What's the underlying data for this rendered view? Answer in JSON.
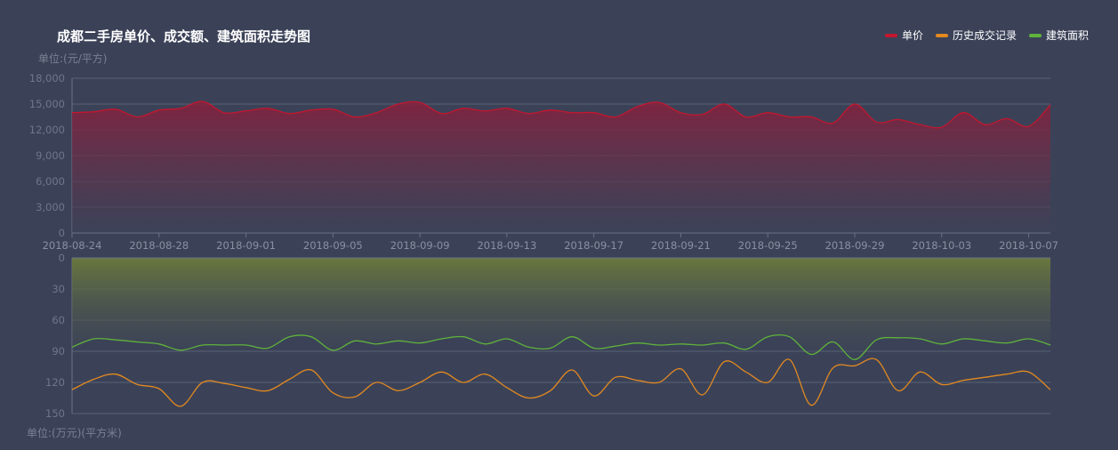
{
  "chart_data": {
    "type": "area",
    "title": "成都二手房单价、成交额、建筑面积走势图",
    "legend": {
      "placement": "top-right",
      "items": [
        {
          "name": "单价",
          "color": "#c4162e"
        },
        {
          "name": "历史成交记录",
          "color": "#e3891f"
        },
        {
          "name": "建筑面积",
          "color": "#5fb33a"
        }
      ]
    },
    "x": [
      "2018-08-24",
      "2018-08-25",
      "2018-08-26",
      "2018-08-27",
      "2018-08-28",
      "2018-08-29",
      "2018-08-30",
      "2018-08-31",
      "2018-09-01",
      "2018-09-02",
      "2018-09-03",
      "2018-09-04",
      "2018-09-05",
      "2018-09-06",
      "2018-09-07",
      "2018-09-08",
      "2018-09-09",
      "2018-09-10",
      "2018-09-11",
      "2018-09-12",
      "2018-09-13",
      "2018-09-14",
      "2018-09-15",
      "2018-09-16",
      "2018-09-17",
      "2018-09-18",
      "2018-09-19",
      "2018-09-20",
      "2018-09-21",
      "2018-09-22",
      "2018-09-23",
      "2018-09-24",
      "2018-09-25",
      "2018-09-26",
      "2018-09-27",
      "2018-09-28",
      "2018-09-29",
      "2018-09-30",
      "2018-10-01",
      "2018-10-02",
      "2018-10-03",
      "2018-10-04",
      "2018-10-05",
      "2018-10-06",
      "2018-10-07",
      "2018-10-08"
    ],
    "x_tick_labels": [
      "2018-08-24",
      "2018-08-28",
      "2018-09-01",
      "2018-09-05",
      "2018-09-09",
      "2018-09-13",
      "2018-09-17",
      "2018-09-21",
      "2018-09-25",
      "2018-09-29",
      "2018-10-03",
      "2018-10-07"
    ],
    "grid": true,
    "panels": [
      {
        "unit_label": "单位:(元/平方)",
        "ylim": [
          0,
          18000
        ],
        "y_ticks": [
          "0",
          "3,000",
          "6,000",
          "9,000",
          "12,000",
          "15,000",
          "18,000"
        ],
        "y_tick_values": [
          0,
          3000,
          6000,
          9000,
          12000,
          15000,
          18000
        ],
        "inverse": false,
        "series": [
          {
            "name": "单价",
            "color": "#c4162e",
            "area": true,
            "values": [
              14000,
              14100,
              14400,
              13500,
              14300,
              14500,
              15300,
              14000,
              14200,
              14500,
              13900,
              14300,
              14400,
              13500,
              14000,
              15000,
              15200,
              13900,
              14500,
              14200,
              14500,
              13900,
              14300,
              14000,
              14000,
              13500,
              14700,
              15200,
              14000,
              13800,
              15000,
              13500,
              14000,
              13500,
              13500,
              12800,
              15000,
              12900,
              13200,
              12600,
              12300,
              14000,
              12600,
              13300,
              12400,
              14900
            ]
          }
        ]
      },
      {
        "unit_label": "单位:(万元)(平方米)",
        "ylim": [
          0,
          150
        ],
        "y_ticks": [
          "0",
          "30",
          "60",
          "90",
          "120",
          "150"
        ],
        "y_tick_values": [
          0,
          30,
          60,
          90,
          120,
          150
        ],
        "inverse": true,
        "series": [
          {
            "name": "建筑面积",
            "color": "#5fb33a",
            "area": true,
            "values": [
              86,
              78,
              79,
              81,
              83,
              89,
              84,
              84,
              84,
              87,
              76,
              76,
              89,
              80,
              83,
              80,
              82,
              78,
              76,
              83,
              78,
              86,
              87,
              76,
              87,
              85,
              82,
              84,
              83,
              84,
              82,
              88,
              76,
              76,
              93,
              81,
              98,
              79,
              77,
              78,
              83,
              78,
              80,
              82,
              78,
              84
            ]
          },
          {
            "name": "历史成交记录",
            "color": "#e3891f",
            "area": false,
            "values": [
              127,
              117,
              112,
              122,
              126,
              143,
              120,
              121,
              125,
              128,
              117,
              108,
              130,
              134,
              120,
              128,
              120,
              110,
              120,
              112,
              125,
              135,
              128,
              108,
              133,
              115,
              118,
              120,
              107,
              132,
              100,
              110,
              120,
              98,
              142,
              106,
              104,
              98,
              128,
              110,
              122,
              118,
              115,
              112,
              110,
              127
            ]
          }
        ]
      }
    ]
  }
}
